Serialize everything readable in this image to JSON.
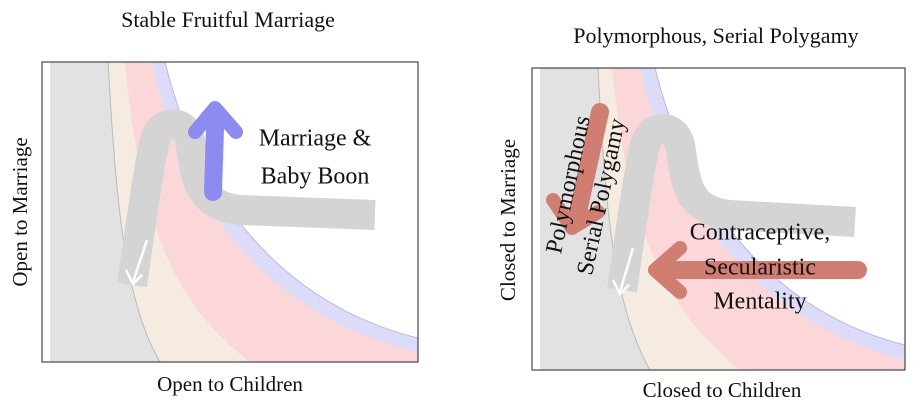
{
  "panels": [
    {
      "title": "Stable Fruitful Marriage",
      "x_label": "Open to Children",
      "y_label": "Open to Marriage",
      "annotation": [
        "Marriage &",
        "Baby Boon"
      ]
    },
    {
      "title": "Polymorphous, Serial Polygamy",
      "x_label": "Closed to Children",
      "y_label": "Closed to Marriage",
      "annotation": [
        "Contraceptive,",
        "Secularistic",
        "Mentality"
      ],
      "rotated_annotation": [
        "Polymorphous",
        "Serial Polygamy"
      ]
    }
  ]
}
